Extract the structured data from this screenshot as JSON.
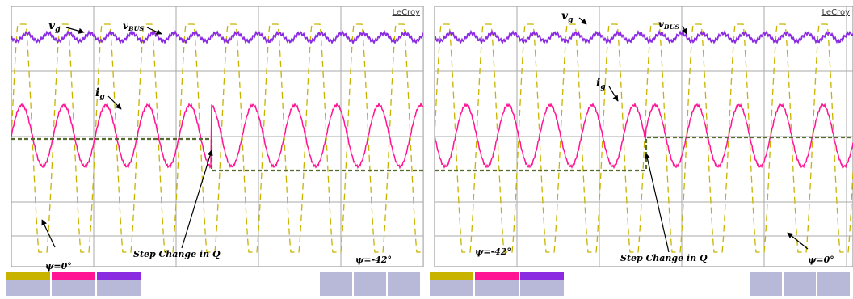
{
  "panels": [
    {
      "brand": "LeCroy",
      "vg": {
        "text": "v",
        "sub": "g"
      },
      "vbus": {
        "text": "v",
        "sub": "BUS"
      },
      "ig": {
        "text": "i",
        "sub": "g"
      },
      "psi_a": "ψ=0°",
      "psi_b": "ψ=-42°",
      "step": "Step Change in Q"
    },
    {
      "brand": "LeCroy",
      "vg": {
        "text": "v",
        "sub": "g"
      },
      "vbus": {
        "text": "v",
        "sub": "BUS"
      },
      "ig": {
        "text": "i",
        "sub": "g"
      },
      "psi_a": "ψ=-42°",
      "psi_b": "ψ=0°",
      "step": "Step Change in Q"
    }
  ]
}
